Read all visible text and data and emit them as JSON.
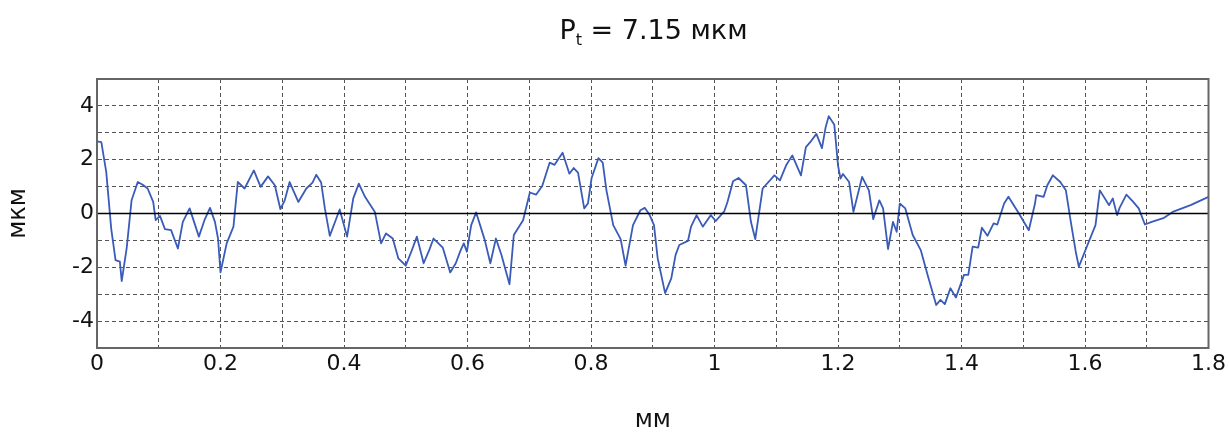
{
  "chart_data": {
    "type": "line",
    "title": "P$_{t}$ = 7.15 мкм",
    "xlabel": "мм",
    "ylabel": "мкм",
    "xlim": [
      0,
      1.8
    ],
    "ylim": [
      -5,
      5
    ],
    "xticks": [
      0,
      {
        "value": 0.1,
        "label": null
      },
      0.2,
      {
        "value": 0.3,
        "label": null
      },
      0.4,
      {
        "value": 0.5,
        "label": null
      },
      0.6,
      {
        "value": 0.7,
        "label": null
      },
      0.8,
      {
        "value": 0.9,
        "label": null
      },
      1,
      {
        "value": 1.1,
        "label": null
      },
      1.2,
      {
        "value": 1.3,
        "label": null
      },
      1.4,
      {
        "value": 1.5,
        "label": null
      },
      1.6,
      {
        "value": 1.7,
        "label": null
      },
      1.8
    ],
    "yticks": [
      -4,
      {
        "value": -3,
        "label": null
      },
      -2,
      {
        "value": -1,
        "label": null
      },
      0,
      {
        "value": 1,
        "label": null
      },
      2,
      {
        "value": 3,
        "label": null
      },
      4
    ],
    "grid": true,
    "line_style": "solid",
    "marker": "none",
    "legend": false,
    "ref_lines": [
      {
        "axis": "y",
        "value": 0,
        "color": "#000000",
        "line_style": "solid"
      }
    ],
    "series": [
      {
        "color": "#3a5bb8",
        "x": [
          0,
          0.007,
          0.015,
          0.023,
          0.03,
          0.037,
          0.04,
          0.048,
          0.056,
          0.066,
          0.074,
          0.082,
          0.091,
          0.095,
          0.102,
          0.11,
          0.12,
          0.131,
          0.139,
          0.15,
          0.165,
          0.174,
          0.183,
          0.191,
          0.196,
          0.2,
          0.21,
          0.221,
          0.228,
          0.239,
          0.254,
          0.265,
          0.277,
          0.288,
          0.297,
          0.304,
          0.312,
          0.326,
          0.339,
          0.349,
          0.355,
          0.363,
          0.369,
          0.377,
          0.393,
          0.405,
          0.415,
          0.424,
          0.434,
          0.45,
          0.46,
          0.468,
          0.479,
          0.488,
          0.5,
          0.509,
          0.518,
          0.529,
          0.538,
          0.545,
          0.56,
          0.572,
          0.581,
          0.589,
          0.594,
          0.599,
          0.606,
          0.614,
          0.628,
          0.637,
          0.646,
          0.655,
          0.668,
          0.675,
          0.69,
          0.701,
          0.711,
          0.721,
          0.733,
          0.741,
          0.754,
          0.765,
          0.772,
          0.779,
          0.789,
          0.795,
          0.801,
          0.812,
          0.819,
          0.825,
          0.836,
          0.848,
          0.856,
          0.868,
          0.88,
          0.887,
          0.895,
          0.902,
          0.908,
          0.92,
          0.93,
          0.937,
          0.943,
          0.957,
          0.962,
          0.971,
          0.981,
          0.994,
          1.002,
          1.016,
          1.021,
          1.03,
          1.039,
          1.051,
          1.059,
          1.066,
          1.078,
          1.097,
          1.106,
          1.116,
          1.126,
          1.14,
          1.148,
          1.155,
          1.165,
          1.174,
          1.18,
          1.185,
          1.194,
          1.2,
          1.204,
          1.208,
          1.218,
          1.225,
          1.239,
          1.25,
          1.257,
          1.267,
          1.273,
          1.281,
          1.289,
          1.295,
          1.3,
          1.309,
          1.321,
          1.334,
          1.345,
          1.359,
          1.366,
          1.373,
          1.382,
          1.391,
          1.404,
          1.411,
          1.418,
          1.427,
          1.433,
          1.442,
          1.452,
          1.458,
          1.469,
          1.476,
          1.492,
          1.509,
          1.519,
          1.521,
          1.533,
          1.539,
          1.548,
          1.56,
          1.569,
          1.577,
          1.585,
          1.59,
          1.604,
          1.617,
          1.624,
          1.639,
          1.645,
          1.652,
          1.656,
          1.667,
          1.677,
          1.687,
          1.697,
          1.708,
          1.728,
          1.742,
          1.771,
          1.8
        ],
        "values": [
          2.68,
          2.65,
          1.54,
          -0.56,
          -1.73,
          -1.79,
          -2.51,
          -1.3,
          0.49,
          1.17,
          1.07,
          0.93,
          0.43,
          -0.25,
          -0.09,
          -0.58,
          -0.62,
          -1.3,
          -0.31,
          0.19,
          -0.86,
          -0.25,
          0.21,
          -0.31,
          -0.93,
          -2.19,
          -1.11,
          -0.49,
          1.17,
          0.93,
          1.6,
          0.99,
          1.38,
          1.05,
          0.16,
          0.49,
          1.17,
          0.43,
          0.93,
          1.15,
          1.44,
          1.15,
          0.19,
          -0.83,
          0.15,
          -0.86,
          0.56,
          1.11,
          0.62,
          0.06,
          -1.11,
          -0.74,
          -0.93,
          -1.67,
          -1.94,
          -1.42,
          -0.86,
          -1.85,
          -1.36,
          -0.93,
          -1.27,
          -2.19,
          -1.85,
          -1.36,
          -1.11,
          -1.42,
          -0.43,
          0.04,
          -0.99,
          -1.85,
          -0.93,
          -1.54,
          -2.63,
          -0.8,
          -0.25,
          0.78,
          0.7,
          1.02,
          1.89,
          1.81,
          2.26,
          1.48,
          1.69,
          1.52,
          0.19,
          0.37,
          1.32,
          2.06,
          1.89,
          0.86,
          -0.43,
          -0.95,
          -1.94,
          -0.43,
          0.12,
          0.21,
          -0.06,
          -0.43,
          -1.67,
          -2.96,
          -2.41,
          -1.54,
          -1.17,
          -1.02,
          -0.49,
          -0.06,
          -0.49,
          -0.06,
          -0.28,
          0.09,
          0.43,
          1.2,
          1.32,
          1.05,
          -0.31,
          -0.95,
          0.93,
          1.42,
          1.23,
          1.79,
          2.16,
          1.42,
          2.47,
          2.65,
          2.96,
          2.43,
          3.21,
          3.62,
          3.3,
          1.79,
          1.3,
          1.47,
          1.17,
          0.06,
          1.36,
          0.86,
          -0.21,
          0.49,
          0.19,
          -1.32,
          -0.31,
          -0.68,
          0.37,
          0.19,
          -0.8,
          -1.36,
          -2.28,
          -3.4,
          -3.21,
          -3.37,
          -2.78,
          -3.12,
          -2.28,
          -2.28,
          -1.23,
          -1.27,
          -0.53,
          -0.83,
          -0.37,
          -0.41,
          0.37,
          0.62,
          0.04,
          -0.62,
          0.37,
          0.68,
          0.62,
          1.05,
          1.42,
          1.17,
          0.86,
          -0.31,
          -1.42,
          -1.98,
          -1.17,
          -0.43,
          0.86,
          0.31,
          0.56,
          -0.06,
          0.21,
          0.7,
          0.46,
          0.19,
          -0.41,
          -0.31,
          -0.16,
          0.06,
          0.31,
          0.62
        ]
      }
    ]
  }
}
